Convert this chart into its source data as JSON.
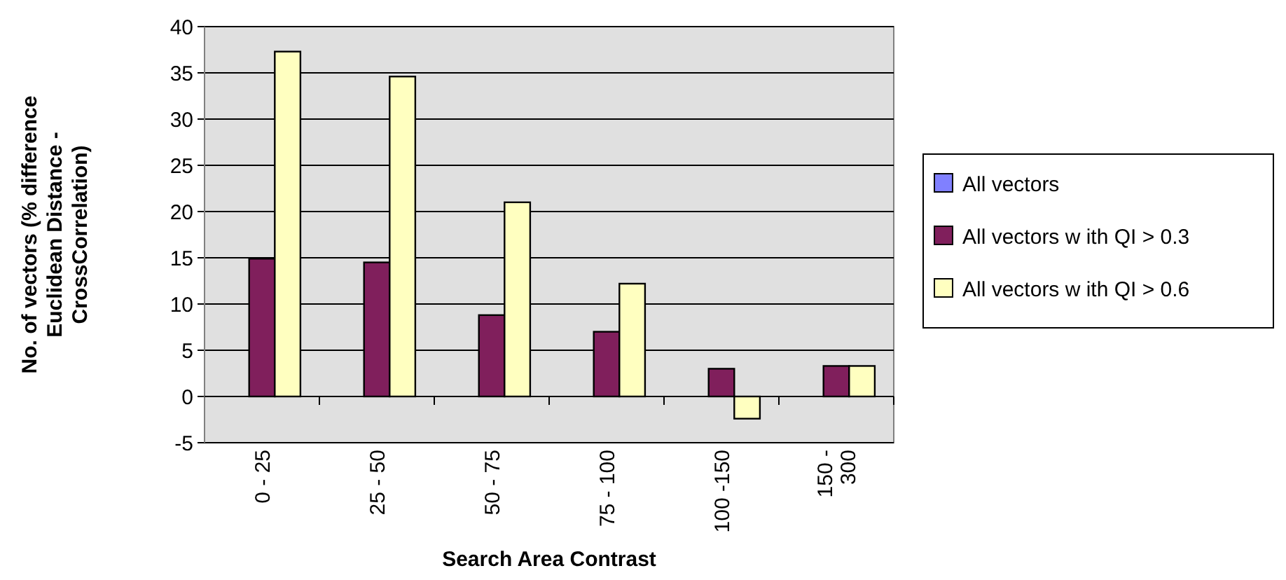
{
  "chart_data": {
    "type": "bar",
    "xlabel": "Search Area Contrast",
    "ylabel": "No. of vectors (% difference Euclidean Distance - CrossCorrelation)",
    "categories": [
      "0 - 25",
      "25 - 50",
      "50 - 75",
      "75 - 100",
      "100 -150",
      "150 - 300"
    ],
    "series": [
      {
        "name": "All vectors",
        "color": "#8080ff",
        "values": [
          null,
          null,
          null,
          null,
          null,
          null
        ]
      },
      {
        "name": "All vectors w ith QI > 0.3",
        "color": "#801f5c",
        "values": [
          14.9,
          14.5,
          8.8,
          7.0,
          3.0,
          3.3
        ]
      },
      {
        "name": "All vectors w ith QI > 0.6",
        "color": "#ffffc0",
        "values": [
          37.3,
          34.6,
          21.0,
          12.2,
          -2.4,
          3.3
        ]
      }
    ],
    "ylim": [
      -5,
      40
    ],
    "yticks": [
      -5,
      0,
      5,
      10,
      15,
      20,
      25,
      30,
      35,
      40
    ],
    "grid": "y",
    "legend": "right"
  }
}
